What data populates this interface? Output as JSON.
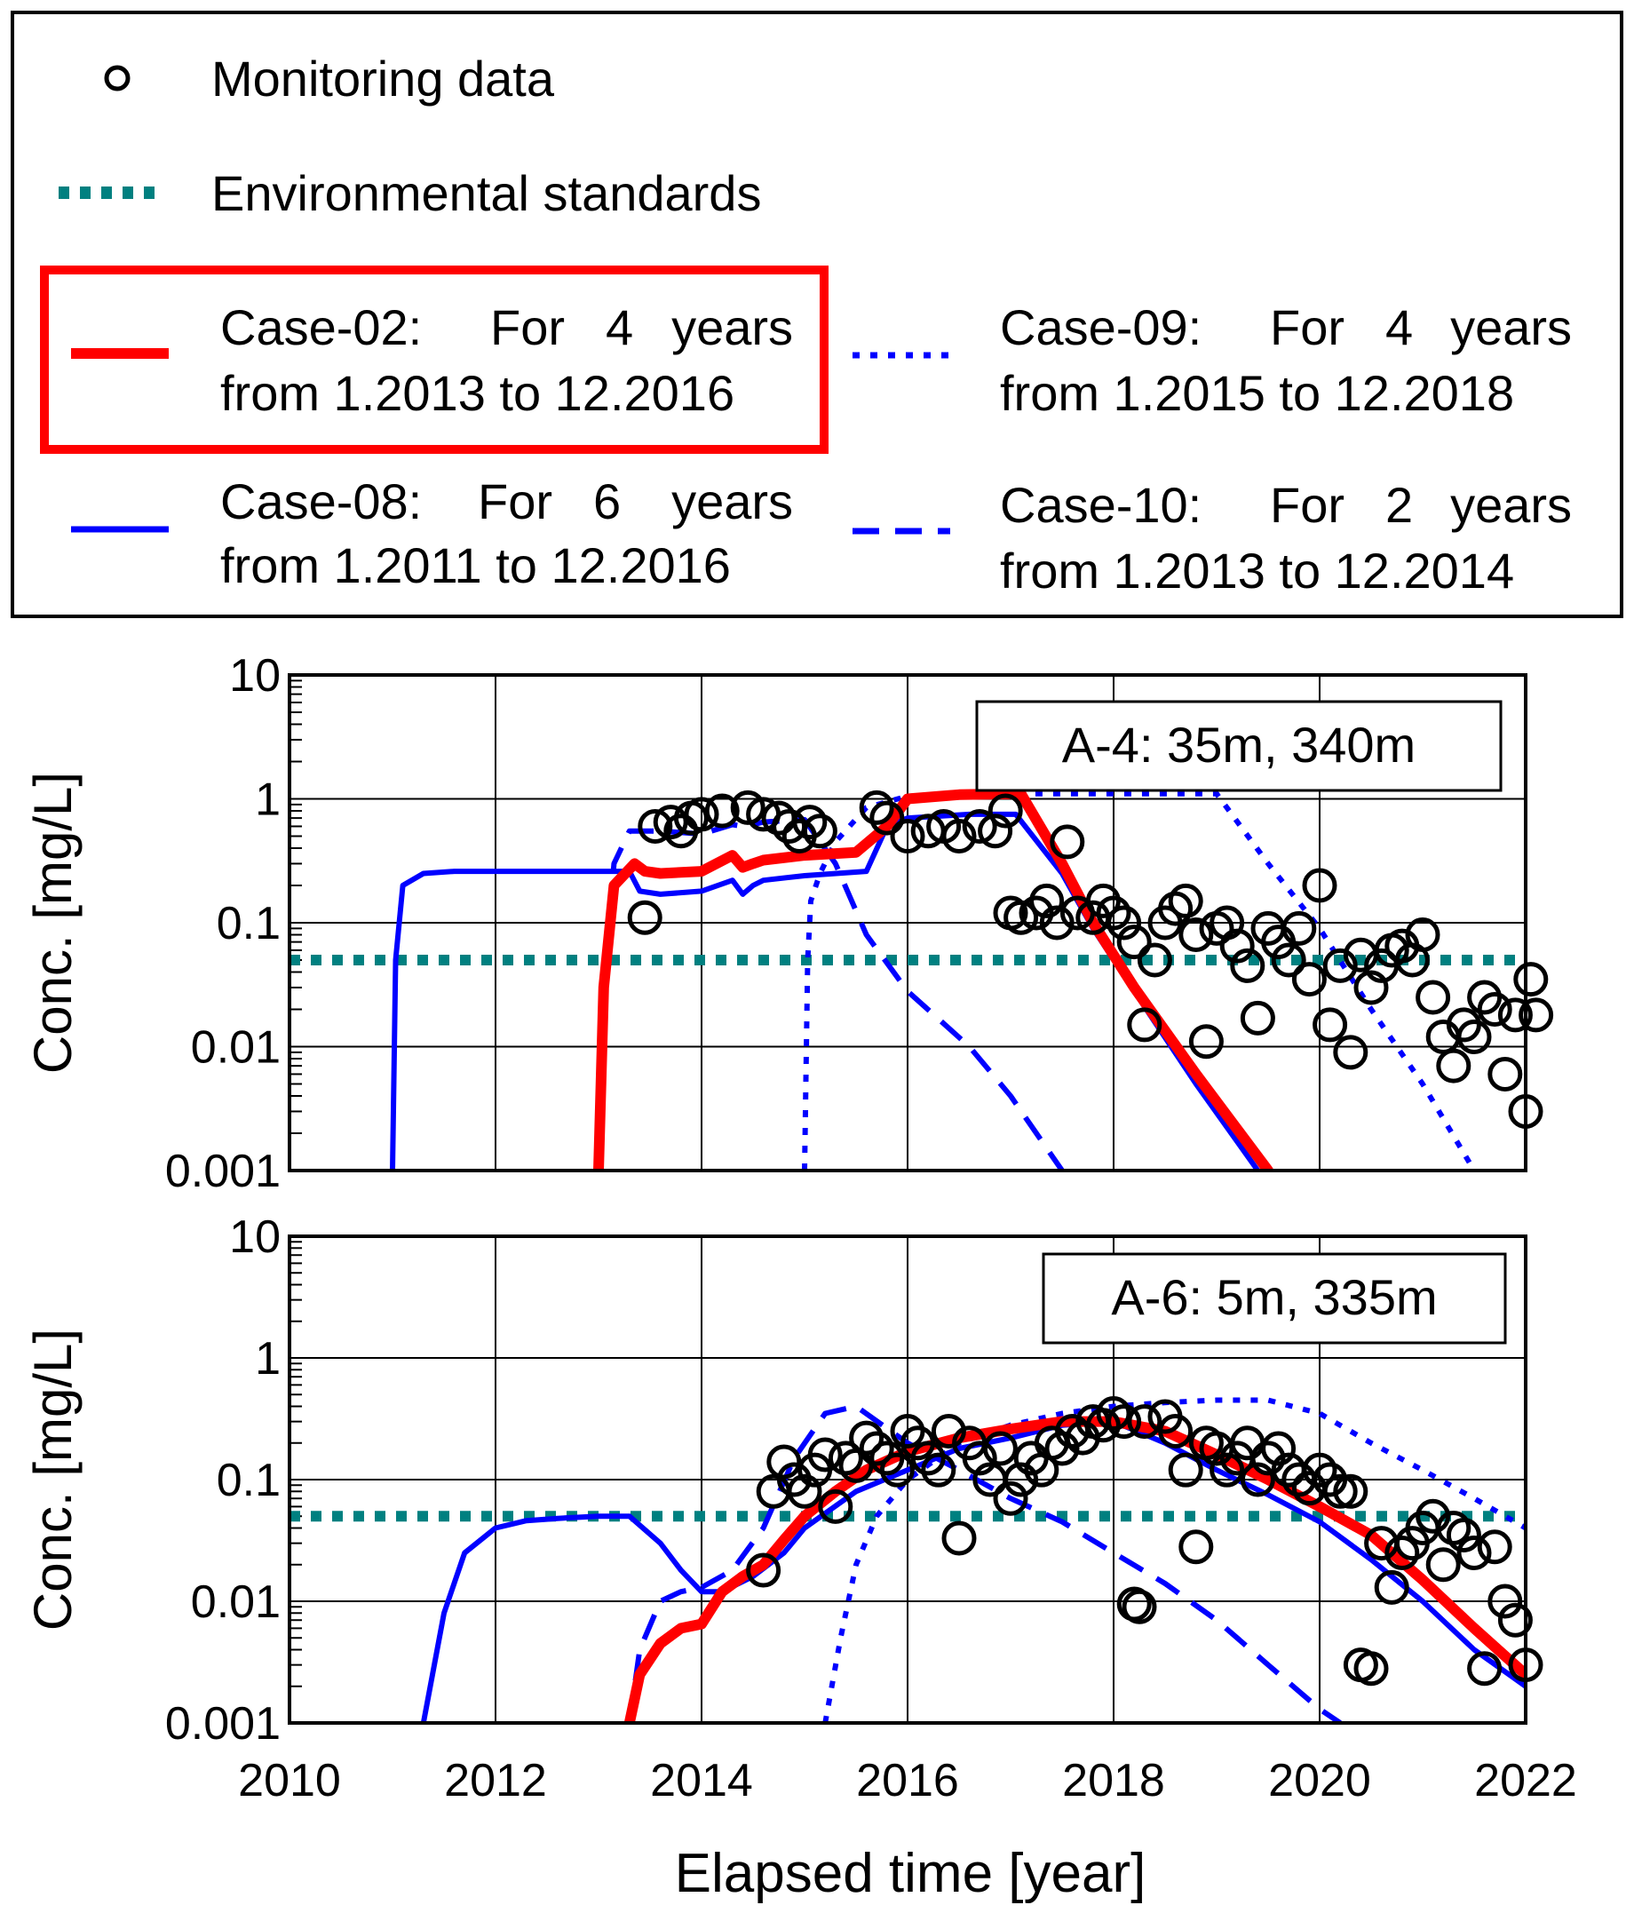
{
  "legend": {
    "monitoring": "Monitoring data",
    "env": "Environmental standards",
    "case02": {
      "label": "Case-02:",
      "for": "For",
      "years": "4",
      "unit": "years",
      "range": "from 1.2013 to 12.2016"
    },
    "case08": {
      "label": "Case-08:",
      "for": "For",
      "years": "6",
      "unit": "years",
      "range": "from 1.2011 to 12.2016"
    },
    "case09": {
      "label": "Case-09:",
      "for": "For",
      "years": "4",
      "unit": "years",
      "range": "from 1.2015 to 12.2018"
    },
    "case10": {
      "label": "Case-10:",
      "for": "For",
      "years": "2",
      "unit": "years",
      "range": "from 1.2013 to 12.2014"
    }
  },
  "colors": {
    "case02": "#ff0000",
    "blue": "#0000ff",
    "env": "#008080",
    "markers": "#000000"
  },
  "chart_data": [
    {
      "type": "line",
      "title": "A-4: 35m, 340m",
      "ylabel": "Conc. [mg/L]",
      "xlabel": "Elapsed time [year]",
      "yscale": "log",
      "ylim": [
        0.001,
        10
      ],
      "xlim": [
        2010,
        2022
      ],
      "x_ticks": [
        "2010",
        "2012",
        "2014",
        "2016",
        "2018",
        "2020",
        "2022"
      ],
      "y_ticks": [
        "0.001",
        "0.01",
        "0.1",
        "1",
        "10"
      ],
      "environmental_standard": 0.05,
      "series": [
        {
          "name": "Case-02",
          "x": [
            2013.0,
            2013.05,
            2013.15,
            2013.35,
            2013.45,
            2013.6,
            2014.0,
            2014.3,
            2014.4,
            2014.5,
            2014.6,
            2015.0,
            2015.5,
            2015.8,
            2016.0,
            2016.5,
            2017.1,
            2017.5,
            2017.8,
            2018.2,
            2018.8,
            2019.5
          ],
          "values": [
            0.001,
            0.03,
            0.2,
            0.3,
            0.26,
            0.25,
            0.26,
            0.35,
            0.28,
            0.3,
            0.32,
            0.35,
            0.37,
            0.6,
            1.0,
            1.08,
            1.1,
            0.3,
            0.1,
            0.03,
            0.006,
            0.001
          ]
        },
        {
          "name": "Case-08",
          "x": [
            2011.0,
            2011.03,
            2011.1,
            2011.3,
            2011.6,
            2012.0,
            2013.0,
            2013.3,
            2013.4,
            2013.6,
            2014.0,
            2014.3,
            2014.4,
            2014.5,
            2014.6,
            2015.0,
            2015.6,
            2015.8,
            2016.0,
            2016.6,
            2017.05,
            2017.5,
            2017.8,
            2018.2,
            2018.8,
            2019.4
          ],
          "values": [
            0.001,
            0.05,
            0.2,
            0.25,
            0.26,
            0.26,
            0.26,
            0.26,
            0.18,
            0.17,
            0.18,
            0.22,
            0.17,
            0.2,
            0.22,
            0.24,
            0.26,
            0.6,
            0.7,
            0.75,
            0.75,
            0.25,
            0.09,
            0.028,
            0.005,
            0.001
          ]
        },
        {
          "name": "Case-09",
          "x": [
            2015.0,
            2015.03,
            2015.06,
            2015.15,
            2015.3,
            2015.6,
            2016.0,
            2017.0,
            2018.0,
            2019.0,
            2019.5,
            2020.0,
            2020.5,
            2021.0,
            2021.5
          ],
          "values": [
            0.001,
            0.05,
            0.15,
            0.25,
            0.45,
            0.85,
            1.05,
            1.1,
            1.1,
            1.1,
            0.3,
            0.09,
            0.02,
            0.005,
            0.001
          ]
        },
        {
          "name": "Case-10",
          "x": [
            2013.0,
            2013.05,
            2013.15,
            2013.3,
            2013.6,
            2014.0,
            2014.3,
            2014.4,
            2014.5,
            2014.6,
            2015.0,
            2015.3,
            2015.6,
            2016.0,
            2016.6,
            2017.0,
            2017.5
          ],
          "values": [
            0.001,
            0.03,
            0.3,
            0.55,
            0.55,
            0.52,
            0.62,
            0.6,
            0.62,
            0.65,
            0.68,
            0.3,
            0.08,
            0.028,
            0.01,
            0.004,
            0.001
          ]
        }
      ],
      "monitoring": {
        "x": [
          2013.45,
          2013.55,
          2013.7,
          2013.8,
          2013.9,
          2014.0,
          2014.2,
          2014.45,
          2014.6,
          2014.75,
          2014.85,
          2014.95,
          2015.05,
          2015.15,
          2015.7,
          2015.8,
          2016.0,
          2016.2,
          2016.35,
          2016.5,
          2016.7,
          2016.85,
          2016.95,
          2017.0,
          2017.1,
          2017.25,
          2017.35,
          2017.45,
          2017.55,
          2017.65,
          2017.8,
          2017.9,
          2018.0,
          2018.1,
          2018.2,
          2018.3,
          2018.4,
          2018.5,
          2018.6,
          2018.7,
          2018.8,
          2018.9,
          2019.0,
          2019.1,
          2019.2,
          2019.3,
          2019.4,
          2019.5,
          2019.6,
          2019.7,
          2019.8,
          2019.9,
          2020.0,
          2020.1,
          2020.2,
          2020.3,
          2020.4,
          2020.5,
          2020.6,
          2020.7,
          2020.8,
          2020.9,
          2021.0,
          2021.1,
          2021.2,
          2021.3,
          2021.4,
          2021.5,
          2021.6,
          2021.7,
          2021.8,
          2021.9,
          2022.0,
          2022.05,
          2022.1
        ],
        "values": [
          0.11,
          0.6,
          0.65,
          0.55,
          0.7,
          0.75,
          0.8,
          0.85,
          0.75,
          0.7,
          0.6,
          0.5,
          0.65,
          0.55,
          0.85,
          0.7,
          0.5,
          0.55,
          0.6,
          0.5,
          0.6,
          0.55,
          0.8,
          0.12,
          0.11,
          0.12,
          0.15,
          0.1,
          0.45,
          0.12,
          0.11,
          0.15,
          0.12,
          0.1,
          0.07,
          0.015,
          0.05,
          0.1,
          0.13,
          0.15,
          0.08,
          0.011,
          0.09,
          0.1,
          0.065,
          0.045,
          0.017,
          0.09,
          0.07,
          0.05,
          0.09,
          0.035,
          0.2,
          0.015,
          0.045,
          0.009,
          0.055,
          0.03,
          0.045,
          0.06,
          0.065,
          0.05,
          0.08,
          0.025,
          0.012,
          0.007,
          0.015,
          0.012,
          0.025,
          0.02,
          0.006,
          0.018,
          0.003,
          0.035,
          0.018
        ]
      }
    },
    {
      "type": "line",
      "title": "A-6: 5m, 335m",
      "ylabel": "Conc. [mg/L]",
      "xlabel": "Elapsed time [year]",
      "yscale": "log",
      "ylim": [
        0.001,
        10
      ],
      "xlim": [
        2010,
        2022
      ],
      "x_ticks": [
        "2010",
        "2012",
        "2014",
        "2016",
        "2018",
        "2020",
        "2022"
      ],
      "y_ticks": [
        "0.001",
        "0.01",
        "0.1",
        "1",
        "10"
      ],
      "environmental_standard": 0.05,
      "series": [
        {
          "name": "Case-02",
          "x": [
            2013.3,
            2013.4,
            2013.6,
            2013.8,
            2014.0,
            2014.2,
            2014.4,
            2014.6,
            2014.8,
            2015.0,
            2015.3,
            2015.6,
            2016.0,
            2016.5,
            2017.0,
            2017.5,
            2018.0,
            2018.5,
            2019.0,
            2019.5,
            2020.0,
            2020.5,
            2021.0,
            2021.5,
            2022.0
          ],
          "values": [
            0.001,
            0.0025,
            0.0045,
            0.006,
            0.0065,
            0.012,
            0.016,
            0.02,
            0.032,
            0.05,
            0.08,
            0.12,
            0.17,
            0.22,
            0.26,
            0.3,
            0.3,
            0.25,
            0.16,
            0.1,
            0.06,
            0.035,
            0.015,
            0.006,
            0.0025
          ]
        },
        {
          "name": "Case-08",
          "x": [
            2011.3,
            2011.5,
            2011.7,
            2012.0,
            2012.3,
            2012.6,
            2013.0,
            2013.3,
            2013.6,
            2013.8,
            2014.0,
            2014.2,
            2014.5,
            2014.8,
            2015.0,
            2015.5,
            2016.0,
            2016.5,
            2017.0,
            2017.5,
            2018.0,
            2018.5,
            2019.0,
            2019.5,
            2020.0,
            2020.5,
            2021.0,
            2021.5,
            2022.0
          ],
          "values": [
            0.001,
            0.008,
            0.025,
            0.04,
            0.046,
            0.048,
            0.05,
            0.05,
            0.03,
            0.018,
            0.012,
            0.012,
            0.016,
            0.025,
            0.04,
            0.08,
            0.12,
            0.18,
            0.22,
            0.28,
            0.3,
            0.2,
            0.12,
            0.075,
            0.045,
            0.022,
            0.01,
            0.004,
            0.002
          ]
        },
        {
          "name": "Case-09",
          "x": [
            2015.2,
            2015.35,
            2015.5,
            2015.7,
            2016.0,
            2016.5,
            2017.0,
            2017.5,
            2018.0,
            2018.5,
            2019.0,
            2019.5,
            2020.0,
            2020.5,
            2021.0,
            2021.5,
            2022.0
          ],
          "values": [
            0.001,
            0.005,
            0.02,
            0.05,
            0.1,
            0.2,
            0.28,
            0.35,
            0.4,
            0.43,
            0.45,
            0.45,
            0.35,
            0.2,
            0.12,
            0.07,
            0.04
          ]
        },
        {
          "name": "Case-10",
          "x": [
            2013.3,
            2013.4,
            2013.6,
            2013.8,
            2014.0,
            2014.3,
            2014.6,
            2014.9,
            2015.2,
            2015.5,
            2016.0,
            2016.5,
            2017.0,
            2017.5,
            2018.0,
            2018.5,
            2019.0,
            2019.5,
            2020.0,
            2020.2
          ],
          "values": [
            0.001,
            0.004,
            0.01,
            0.012,
            0.013,
            0.018,
            0.04,
            0.15,
            0.35,
            0.4,
            0.2,
            0.12,
            0.07,
            0.045,
            0.025,
            0.014,
            0.007,
            0.003,
            0.0013,
            0.001
          ]
        }
      ],
      "monitoring": {
        "x": [
          2014.6,
          2014.7,
          2014.8,
          2014.9,
          2015.0,
          2015.1,
          2015.2,
          2015.3,
          2015.4,
          2015.5,
          2015.6,
          2015.7,
          2015.8,
          2015.9,
          2016.0,
          2016.1,
          2016.2,
          2016.3,
          2016.4,
          2016.5,
          2016.6,
          2016.7,
          2016.8,
          2016.9,
          2017.0,
          2017.1,
          2017.2,
          2017.3,
          2017.4,
          2017.5,
          2017.6,
          2017.7,
          2017.8,
          2017.9,
          2018.0,
          2018.1,
          2018.2,
          2018.25,
          2018.3,
          2018.5,
          2018.6,
          2018.7,
          2018.8,
          2018.9,
          2019.0,
          2019.1,
          2019.2,
          2019.3,
          2019.4,
          2019.5,
          2019.6,
          2019.7,
          2019.8,
          2019.9,
          2020.0,
          2020.1,
          2020.2,
          2020.3,
          2020.4,
          2020.5,
          2020.6,
          2020.7,
          2020.8,
          2020.9,
          2021.0,
          2021.1,
          2021.2,
          2021.3,
          2021.4,
          2021.5,
          2021.6,
          2021.7,
          2021.8,
          2021.9,
          2022.0
        ],
        "values": [
          0.018,
          0.08,
          0.14,
          0.1,
          0.08,
          0.12,
          0.16,
          0.06,
          0.15,
          0.13,
          0.22,
          0.18,
          0.15,
          0.12,
          0.25,
          0.2,
          0.15,
          0.12,
          0.25,
          0.033,
          0.2,
          0.15,
          0.1,
          0.18,
          0.07,
          0.1,
          0.15,
          0.12,
          0.2,
          0.18,
          0.25,
          0.22,
          0.3,
          0.28,
          0.35,
          0.3,
          0.0095,
          0.009,
          0.3,
          0.33,
          0.25,
          0.12,
          0.028,
          0.2,
          0.18,
          0.12,
          0.15,
          0.2,
          0.1,
          0.15,
          0.18,
          0.12,
          0.1,
          0.085,
          0.12,
          0.1,
          0.08,
          0.08,
          0.003,
          0.0028,
          0.03,
          0.013,
          0.025,
          0.03,
          0.04,
          0.05,
          0.02,
          0.04,
          0.035,
          0.025,
          0.0028,
          0.028,
          0.01,
          0.007,
          0.003
        ]
      }
    }
  ]
}
